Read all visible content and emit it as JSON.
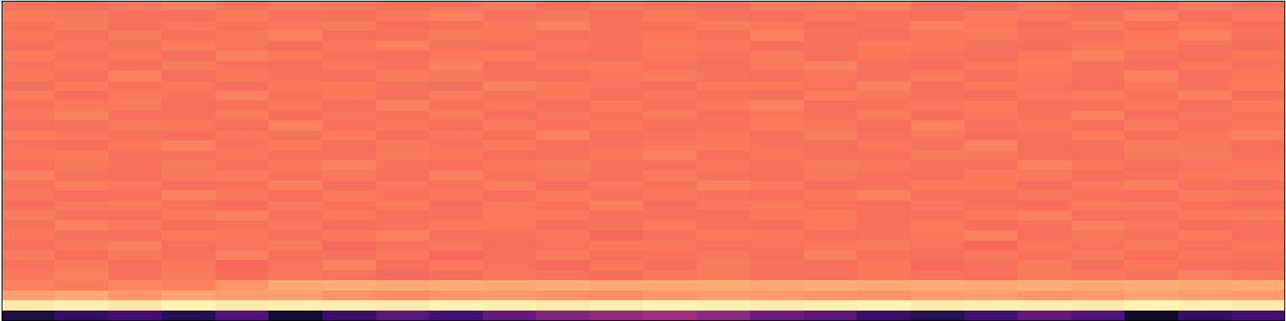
{
  "chart_data": {
    "type": "heatmap",
    "tick_labels": false,
    "value_range": [
      0,
      1
    ],
    "cells": [
      [
        0.12,
        0.18,
        0.22,
        0.15,
        0.25,
        0.1,
        0.2,
        0.28,
        0.22,
        0.3,
        0.38,
        0.42,
        0.45,
        0.4,
        0.32,
        0.28,
        0.2,
        0.15,
        0.22,
        0.3,
        0.25,
        0.08,
        0.18,
        0.22
      ],
      [
        0.96,
        0.97,
        0.95,
        0.98,
        0.96,
        0.97,
        0.97,
        0.96,
        0.98,
        0.97,
        0.96,
        0.97,
        0.98,
        0.97,
        0.96,
        0.97,
        0.98,
        0.96,
        0.97,
        0.97,
        0.96,
        0.98,
        0.97,
        0.96
      ],
      [
        0.8,
        0.82,
        0.78,
        0.81,
        0.79,
        0.8,
        0.77,
        0.76,
        0.78,
        0.79,
        0.77,
        0.76,
        0.78,
        0.8,
        0.79,
        0.78,
        0.77,
        0.79,
        0.8,
        0.78,
        0.79,
        0.81,
        0.8,
        0.79
      ],
      [
        0.74,
        0.73,
        0.75,
        0.74,
        0.78,
        0.82,
        0.83,
        0.82,
        0.83,
        0.82,
        0.83,
        0.82,
        0.82,
        0.83,
        0.82,
        0.83,
        0.82,
        0.83,
        0.82,
        0.83,
        0.82,
        0.83,
        0.82,
        0.83
      ],
      [
        0.72,
        0.74,
        0.71,
        0.73,
        0.7,
        0.72,
        0.71,
        0.69,
        0.7,
        0.72,
        0.71,
        0.7,
        0.72,
        0.73,
        0.71,
        0.7,
        0.72,
        0.71,
        0.7,
        0.73,
        0.72,
        0.71,
        0.74,
        0.72
      ],
      [
        0.71,
        0.73,
        0.7,
        0.72,
        0.69,
        0.71,
        0.74,
        0.7,
        0.72,
        0.71,
        0.69,
        0.72,
        0.7,
        0.73,
        0.71,
        0.7,
        0.72,
        0.69,
        0.71,
        0.73,
        0.7,
        0.72,
        0.71,
        0.7
      ],
      [
        0.73,
        0.7,
        0.72,
        0.71,
        0.74,
        0.7,
        0.71,
        0.72,
        0.69,
        0.71,
        0.73,
        0.7,
        0.71,
        0.72,
        0.7,
        0.74,
        0.71,
        0.7,
        0.72,
        0.71,
        0.73,
        0.7,
        0.72,
        0.71
      ],
      [
        0.7,
        0.72,
        0.74,
        0.7,
        0.71,
        0.73,
        0.69,
        0.71,
        0.72,
        0.7,
        0.71,
        0.73,
        0.72,
        0.7,
        0.71,
        0.72,
        0.73,
        0.71,
        0.69,
        0.72,
        0.71,
        0.73,
        0.7,
        0.72
      ],
      [
        0.72,
        0.71,
        0.7,
        0.73,
        0.72,
        0.7,
        0.72,
        0.74,
        0.7,
        0.71,
        0.72,
        0.69,
        0.71,
        0.73,
        0.72,
        0.7,
        0.71,
        0.72,
        0.74,
        0.7,
        0.72,
        0.71,
        0.73,
        0.7
      ],
      [
        0.71,
        0.74,
        0.72,
        0.7,
        0.71,
        0.72,
        0.7,
        0.71,
        0.73,
        0.72,
        0.7,
        0.71,
        0.73,
        0.71,
        0.7,
        0.72,
        0.71,
        0.73,
        0.7,
        0.71,
        0.74,
        0.72,
        0.7,
        0.71
      ],
      [
        0.73,
        0.71,
        0.7,
        0.72,
        0.74,
        0.71,
        0.72,
        0.7,
        0.71,
        0.73,
        0.72,
        0.7,
        0.71,
        0.7,
        0.72,
        0.73,
        0.7,
        0.71,
        0.72,
        0.74,
        0.7,
        0.71,
        0.72,
        0.73
      ],
      [
        0.7,
        0.72,
        0.73,
        0.71,
        0.7,
        0.72,
        0.71,
        0.73,
        0.7,
        0.72,
        0.71,
        0.74,
        0.7,
        0.72,
        0.73,
        0.71,
        0.7,
        0.72,
        0.71,
        0.7,
        0.73,
        0.72,
        0.71,
        0.7
      ],
      [
        0.72,
        0.7,
        0.71,
        0.74,
        0.72,
        0.7,
        0.73,
        0.71,
        0.72,
        0.7,
        0.73,
        0.71,
        0.72,
        0.71,
        0.7,
        0.72,
        0.74,
        0.71,
        0.7,
        0.72,
        0.71,
        0.7,
        0.73,
        0.72
      ],
      [
        0.71,
        0.73,
        0.72,
        0.7,
        0.71,
        0.74,
        0.7,
        0.72,
        0.71,
        0.73,
        0.7,
        0.72,
        0.71,
        0.74,
        0.72,
        0.7,
        0.71,
        0.73,
        0.72,
        0.7,
        0.72,
        0.74,
        0.71,
        0.7
      ],
      [
        0.74,
        0.71,
        0.7,
        0.72,
        0.73,
        0.71,
        0.72,
        0.7,
        0.74,
        0.71,
        0.72,
        0.7,
        0.73,
        0.71,
        0.7,
        0.72,
        0.71,
        0.7,
        0.73,
        0.72,
        0.7,
        0.71,
        0.72,
        0.73
      ],
      [
        0.7,
        0.72,
        0.71,
        0.73,
        0.7,
        0.72,
        0.74,
        0.71,
        0.7,
        0.72,
        0.73,
        0.71,
        0.7,
        0.72,
        0.71,
        0.73,
        0.72,
        0.7,
        0.71,
        0.74,
        0.72,
        0.7,
        0.71,
        0.72
      ],
      [
        0.72,
        0.73,
        0.7,
        0.71,
        0.72,
        0.7,
        0.71,
        0.73,
        0.72,
        0.7,
        0.71,
        0.72,
        0.74,
        0.7,
        0.72,
        0.71,
        0.7,
        0.73,
        0.72,
        0.71,
        0.7,
        0.72,
        0.73,
        0.71
      ],
      [
        0.71,
        0.7,
        0.72,
        0.74,
        0.71,
        0.73,
        0.7,
        0.72,
        0.71,
        0.73,
        0.7,
        0.71,
        0.72,
        0.73,
        0.71,
        0.7,
        0.72,
        0.71,
        0.74,
        0.7,
        0.71,
        0.73,
        0.72,
        0.7
      ],
      [
        0.73,
        0.72,
        0.71,
        0.7,
        0.72,
        0.71,
        0.73,
        0.7,
        0.72,
        0.71,
        0.74,
        0.7,
        0.71,
        0.72,
        0.7,
        0.73,
        0.71,
        0.72,
        0.7,
        0.71,
        0.73,
        0.7,
        0.72,
        0.74
      ],
      [
        0.7,
        0.71,
        0.73,
        0.72,
        0.7,
        0.74,
        0.71,
        0.72,
        0.7,
        0.73,
        0.71,
        0.72,
        0.7,
        0.71,
        0.73,
        0.72,
        0.7,
        0.74,
        0.71,
        0.72,
        0.7,
        0.73,
        0.71,
        0.72
      ],
      [
        0.72,
        0.74,
        0.7,
        0.71,
        0.73,
        0.7,
        0.72,
        0.71,
        0.73,
        0.7,
        0.72,
        0.71,
        0.73,
        0.7,
        0.72,
        0.71,
        0.73,
        0.7,
        0.72,
        0.71,
        0.74,
        0.7,
        0.72,
        0.71
      ],
      [
        0.71,
        0.72,
        0.73,
        0.7,
        0.71,
        0.72,
        0.7,
        0.74,
        0.71,
        0.72,
        0.7,
        0.73,
        0.71,
        0.72,
        0.74,
        0.7,
        0.71,
        0.72,
        0.73,
        0.7,
        0.71,
        0.72,
        0.7,
        0.73
      ],
      [
        0.73,
        0.7,
        0.72,
        0.71,
        0.74,
        0.71,
        0.72,
        0.7,
        0.73,
        0.71,
        0.72,
        0.7,
        0.72,
        0.71,
        0.7,
        0.73,
        0.72,
        0.71,
        0.7,
        0.72,
        0.73,
        0.71,
        0.74,
        0.7
      ],
      [
        0.7,
        0.73,
        0.71,
        0.72,
        0.7,
        0.72,
        0.73,
        0.71,
        0.7,
        0.74,
        0.72,
        0.71,
        0.7,
        0.73,
        0.72,
        0.71,
        0.74,
        0.7,
        0.72,
        0.71,
        0.7,
        0.72,
        0.71,
        0.73
      ],
      [
        0.72,
        0.71,
        0.74,
        0.7,
        0.72,
        0.71,
        0.7,
        0.73,
        0.72,
        0.71,
        0.7,
        0.72,
        0.73,
        0.71,
        0.7,
        0.72,
        0.71,
        0.73,
        0.7,
        0.72,
        0.71,
        0.74,
        0.7,
        0.72
      ],
      [
        0.71,
        0.72,
        0.7,
        0.73,
        0.71,
        0.7,
        0.72,
        0.71,
        0.74,
        0.7,
        0.72,
        0.73,
        0.71,
        0.7,
        0.72,
        0.74,
        0.71,
        0.7,
        0.72,
        0.73,
        0.71,
        0.7,
        0.72,
        0.71
      ],
      [
        0.73,
        0.71,
        0.72,
        0.7,
        0.74,
        0.72,
        0.71,
        0.7,
        0.72,
        0.73,
        0.71,
        0.7,
        0.72,
        0.71,
        0.73,
        0.7,
        0.72,
        0.71,
        0.7,
        0.72,
        0.74,
        0.71,
        0.7,
        0.72
      ],
      [
        0.7,
        0.72,
        0.71,
        0.73,
        0.71,
        0.7,
        0.72,
        0.74,
        0.71,
        0.7,
        0.72,
        0.71,
        0.73,
        0.72,
        0.7,
        0.71,
        0.73,
        0.72,
        0.71,
        0.7,
        0.72,
        0.73,
        0.71,
        0.7
      ],
      [
        0.72,
        0.7,
        0.73,
        0.71,
        0.72,
        0.74,
        0.7,
        0.71,
        0.73,
        0.72,
        0.7,
        0.71,
        0.72,
        0.7,
        0.74,
        0.71,
        0.7,
        0.72,
        0.73,
        0.71,
        0.7,
        0.72,
        0.74,
        0.71
      ],
      [
        0.71,
        0.73,
        0.7,
        0.72,
        0.71,
        0.72,
        0.73,
        0.7,
        0.71,
        0.72,
        0.74,
        0.7,
        0.71,
        0.73,
        0.72,
        0.7,
        0.71,
        0.74,
        0.72,
        0.7,
        0.73,
        0.71,
        0.72,
        0.7
      ],
      [
        0.73,
        0.72,
        0.71,
        0.7,
        0.73,
        0.71,
        0.7,
        0.72,
        0.74,
        0.71,
        0.72,
        0.7,
        0.73,
        0.71,
        0.7,
        0.72,
        0.71,
        0.7,
        0.73,
        0.72,
        0.71,
        0.74,
        0.7,
        0.72
      ],
      [
        0.71,
        0.7,
        0.72,
        0.74,
        0.71,
        0.73,
        0.72,
        0.7,
        0.71,
        0.73,
        0.7,
        0.72,
        0.71,
        0.7,
        0.73,
        0.72,
        0.74,
        0.71,
        0.7,
        0.72,
        0.71,
        0.7,
        0.73,
        0.71
      ]
    ]
  }
}
